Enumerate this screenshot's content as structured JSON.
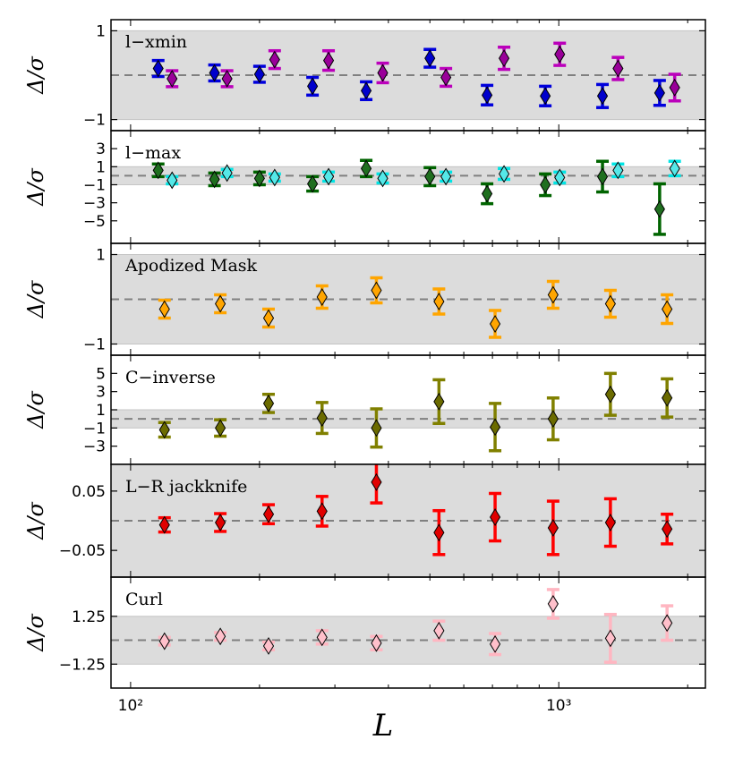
{
  "figure": {
    "xlabel": "L",
    "ylabel": "Δ/σ",
    "x_ticks": [
      {
        "value": 100,
        "label": "10²"
      },
      {
        "value": 1000,
        "label": "10³"
      }
    ],
    "xlim": [
      90,
      2200
    ],
    "x_scale": "log"
  },
  "colors": {
    "band": "#dcdcdc",
    "zero_line": "#808080",
    "axis": "#000000"
  },
  "chart_data": [
    {
      "type": "scatter",
      "title": "l−xmin",
      "ylim": [
        -1.25,
        1.25
      ],
      "band": [
        -1,
        1
      ],
      "y_ticks": [
        {
          "value": 1,
          "label": "1"
        },
        {
          "value": -1,
          "label": "−1"
        }
      ],
      "series": [
        {
          "name": "xmin-a",
          "color": "#0000dd",
          "marker_color": "#0000cc",
          "x": [
            116,
            157,
            200,
            266,
            355,
            500,
            680,
            930,
            1265,
            1720
          ],
          "y": [
            0.15,
            0.05,
            0.02,
            -0.25,
            -0.35,
            0.38,
            -0.45,
            -0.47,
            -0.47,
            -0.4
          ],
          "err": [
            0.18,
            0.18,
            0.18,
            0.2,
            0.2,
            0.2,
            0.22,
            0.22,
            0.26,
            0.28
          ]
        },
        {
          "name": "xmin-b",
          "color": "#bb00bb",
          "marker_color": "#990099",
          "x": [
            125,
            168,
            217,
            290,
            388,
            545,
            745,
            1005,
            1375,
            1865
          ],
          "y": [
            -0.08,
            -0.08,
            0.35,
            0.33,
            0.05,
            -0.05,
            0.38,
            0.47,
            0.15,
            -0.28
          ],
          "err": [
            0.18,
            0.18,
            0.2,
            0.22,
            0.22,
            0.2,
            0.25,
            0.25,
            0.25,
            0.3
          ]
        }
      ]
    },
    {
      "type": "scatter",
      "title": "l−max",
      "ylim": [
        -7.5,
        5
      ],
      "band": [
        -1,
        1
      ],
      "y_ticks": [
        {
          "value": 3,
          "label": "3"
        },
        {
          "value": 1,
          "label": "1"
        },
        {
          "value": -1,
          "label": "−1"
        },
        {
          "value": -3,
          "label": "−3"
        },
        {
          "value": -5,
          "label": "−5"
        }
      ],
      "series": [
        {
          "name": "max-a",
          "color": "#006400",
          "marker_color": "#1f6f1f",
          "x": [
            116,
            157,
            200,
            266,
            355,
            500,
            680,
            930,
            1265,
            1720
          ],
          "y": [
            0.6,
            -0.4,
            -0.3,
            -0.9,
            0.8,
            -0.1,
            -2.0,
            -1.0,
            -0.1,
            -3.7
          ],
          "err": [
            0.7,
            0.7,
            0.7,
            0.8,
            0.9,
            1.0,
            1.1,
            1.2,
            1.7,
            2.8
          ]
        },
        {
          "name": "max-b",
          "color": "#00e5e5",
          "marker_color": "#55e8e8",
          "x": [
            125,
            168,
            217,
            290,
            388,
            545,
            745,
            1005,
            1375,
            1865
          ],
          "y": [
            -0.5,
            0.3,
            -0.2,
            -0.1,
            -0.3,
            -0.1,
            0.2,
            -0.2,
            0.6,
            0.8
          ],
          "err": [
            0.4,
            0.4,
            0.4,
            0.5,
            0.5,
            0.5,
            0.6,
            0.6,
            0.7,
            0.8
          ]
        }
      ]
    },
    {
      "type": "scatter",
      "title": "Apodized Mask",
      "ylim": [
        -1.25,
        1.25
      ],
      "band": [
        -1,
        1
      ],
      "y_ticks": [
        {
          "value": 1,
          "label": "1"
        },
        {
          "value": -1,
          "label": "−1"
        }
      ],
      "series": [
        {
          "name": "apodized",
          "color": "#ffa500",
          "marker_color": "#ffa500",
          "x": [
            120,
            162,
            210,
            280,
            375,
            525,
            710,
            970,
            1320,
            1790
          ],
          "y": [
            -0.22,
            -0.1,
            -0.42,
            0.05,
            0.2,
            -0.05,
            -0.55,
            0.1,
            -0.1,
            -0.22
          ],
          "err": [
            0.2,
            0.2,
            0.2,
            0.25,
            0.28,
            0.28,
            0.3,
            0.3,
            0.3,
            0.32
          ]
        }
      ]
    },
    {
      "type": "scatter",
      "title": "C−inverse",
      "ylim": [
        -5,
        7
      ],
      "band": [
        -1,
        1
      ],
      "y_ticks": [
        {
          "value": 5,
          "label": "5"
        },
        {
          "value": 3,
          "label": "3"
        },
        {
          "value": 1,
          "label": "1"
        },
        {
          "value": -1,
          "label": "−1"
        },
        {
          "value": -3,
          "label": "−3"
        }
      ],
      "series": [
        {
          "name": "cinverse",
          "color": "#808000",
          "marker_color": "#6b6b00",
          "x": [
            120,
            162,
            210,
            280,
            375,
            525,
            710,
            970,
            1320,
            1790
          ],
          "y": [
            -1.2,
            -1.0,
            1.7,
            0.1,
            -1.0,
            1.9,
            -0.9,
            0.0,
            2.7,
            2.3
          ],
          "err": [
            0.8,
            0.9,
            1.0,
            1.7,
            2.1,
            2.4,
            2.6,
            2.3,
            2.3,
            2.1
          ]
        }
      ]
    },
    {
      "type": "scatter",
      "title": "L−R jackknife",
      "ylim": [
        -0.095,
        0.095
      ],
      "band": [
        -0.1,
        0.1
      ],
      "y_ticks": [
        {
          "value": 0.05,
          "label": "0.05"
        },
        {
          "value": -0.05,
          "label": "−0.05"
        }
      ],
      "series": [
        {
          "name": "lr-jackknife",
          "color": "#ff0000",
          "marker_color": "#e00000",
          "x": [
            120,
            162,
            210,
            280,
            375,
            525,
            710,
            970,
            1320,
            1790
          ],
          "y": [
            -0.007,
            -0.003,
            0.011,
            0.016,
            0.065,
            -0.02,
            0.006,
            -0.012,
            -0.003,
            -0.014
          ],
          "err": [
            0.012,
            0.015,
            0.016,
            0.025,
            0.035,
            0.037,
            0.04,
            0.045,
            0.04,
            0.025
          ]
        }
      ]
    },
    {
      "type": "scatter",
      "title": "Curl",
      "ylim": [
        -2.5,
        3.3
      ],
      "band": [
        -1.25,
        1.25
      ],
      "y_ticks": [
        {
          "value": 1.25,
          "label": "1.25"
        },
        {
          "value": -1.25,
          "label": "−1.25"
        }
      ],
      "series": [
        {
          "name": "curl",
          "color": "#ffb6c1",
          "marker_color": "#ffc0cb",
          "x": [
            120,
            162,
            210,
            280,
            375,
            525,
            710,
            970,
            1320,
            1790
          ],
          "y": [
            -0.05,
            0.2,
            -0.3,
            0.15,
            -0.15,
            0.5,
            -0.2,
            1.9,
            0.1,
            0.9
          ],
          "err": [
            0.2,
            0.2,
            0.2,
            0.35,
            0.35,
            0.5,
            0.55,
            0.75,
            1.25,
            0.9
          ]
        }
      ]
    }
  ]
}
